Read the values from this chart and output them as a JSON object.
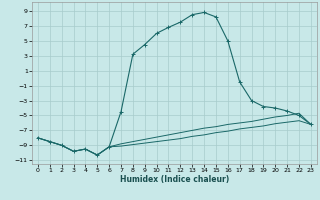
{
  "xlabel": "Humidex (Indice chaleur)",
  "bg_color": "#c8e8e8",
  "grid_color": "#a8cccc",
  "line_color": "#1a6868",
  "xlim": [
    -0.5,
    23.5
  ],
  "ylim": [
    -11.5,
    10.2
  ],
  "xticks": [
    0,
    1,
    2,
    3,
    4,
    5,
    6,
    7,
    8,
    9,
    10,
    11,
    12,
    13,
    14,
    15,
    16,
    17,
    18,
    19,
    20,
    21,
    22,
    23
  ],
  "yticks": [
    -11,
    -9,
    -7,
    -5,
    -3,
    -1,
    1,
    3,
    5,
    7,
    9
  ],
  "curve_main_x": [
    0,
    1,
    2,
    3,
    4,
    5,
    6,
    7,
    8,
    9,
    10,
    11,
    12,
    13,
    14,
    15,
    16,
    17,
    18,
    19,
    20,
    21,
    22,
    23
  ],
  "curve_main_y": [
    -8.0,
    -8.5,
    -9.0,
    -9.8,
    -9.5,
    -10.3,
    -9.2,
    -4.5,
    3.2,
    4.5,
    6.0,
    6.8,
    7.5,
    8.5,
    8.8,
    8.2,
    5.0,
    -0.5,
    -3.0,
    -3.8,
    -4.0,
    -4.4,
    -5.0,
    -6.2
  ],
  "curve_upper_x": [
    0,
    1,
    2,
    3,
    4,
    5,
    6,
    7,
    8,
    9,
    10,
    11,
    12,
    13,
    14,
    15,
    16,
    17,
    18,
    19,
    20,
    21,
    22,
    23
  ],
  "curve_upper_y": [
    -8.0,
    -8.5,
    -9.0,
    -9.8,
    -9.5,
    -10.3,
    -9.2,
    -8.8,
    -8.5,
    -8.2,
    -7.9,
    -7.6,
    -7.3,
    -7.0,
    -6.7,
    -6.5,
    -6.2,
    -6.0,
    -5.8,
    -5.5,
    -5.2,
    -5.0,
    -4.7,
    -6.2
  ],
  "curve_lower_x": [
    0,
    1,
    2,
    3,
    4,
    5,
    6,
    7,
    8,
    9,
    10,
    11,
    12,
    13,
    14,
    15,
    16,
    17,
    18,
    19,
    20,
    21,
    22,
    23
  ],
  "curve_lower_y": [
    -8.0,
    -8.5,
    -9.0,
    -9.8,
    -9.5,
    -10.3,
    -9.2,
    -9.1,
    -8.9,
    -8.7,
    -8.5,
    -8.3,
    -8.1,
    -7.8,
    -7.6,
    -7.3,
    -7.1,
    -6.8,
    -6.6,
    -6.4,
    -6.1,
    -5.9,
    -5.7,
    -6.2
  ]
}
